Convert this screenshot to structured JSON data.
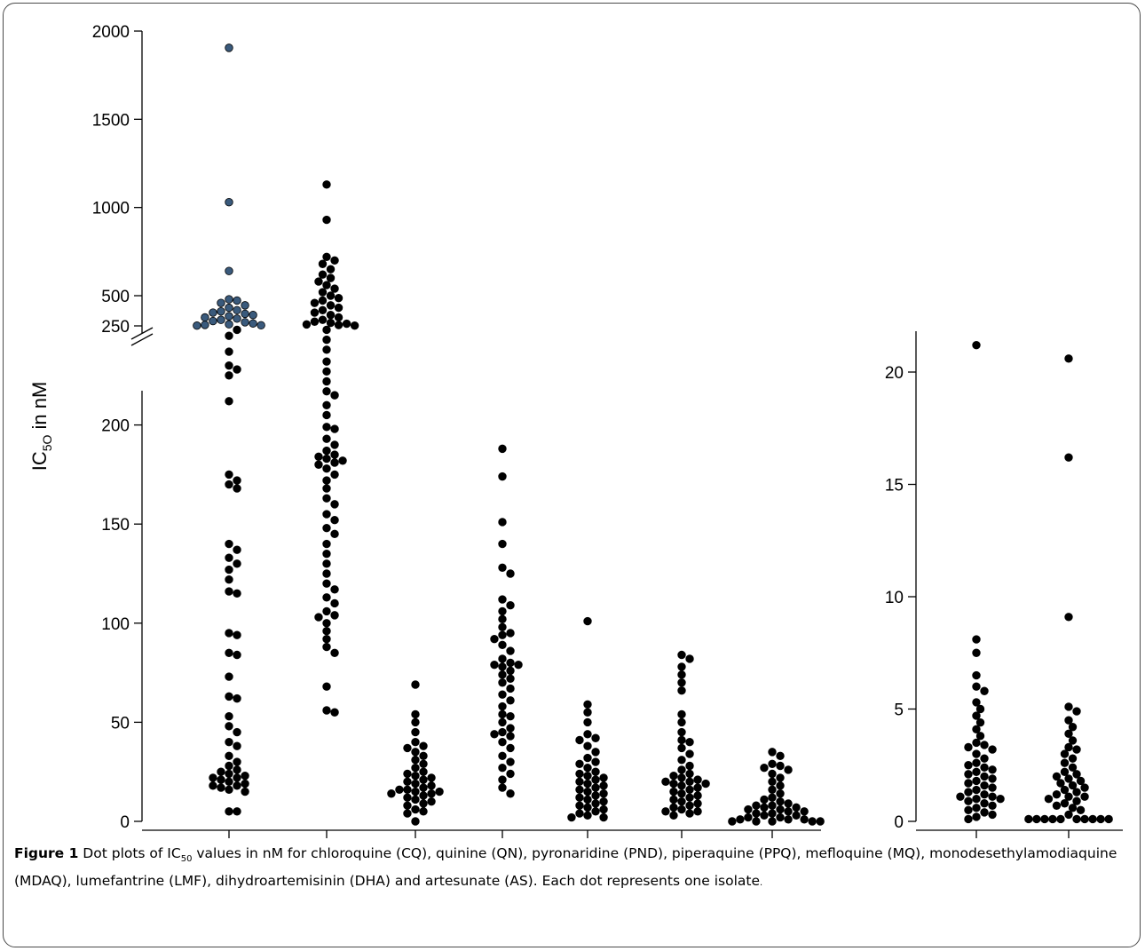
{
  "chart_data": [
    {
      "type": "scatter",
      "style": "dot-plot",
      "ylabel": "IC₅O in nM",
      "ylabel_main": "IC",
      "ylabel_sub": "5O",
      "ylabel_rest": " in nM",
      "y_axis_break": [
        250,
        500
      ],
      "y_ticks_lower": [
        "0",
        "50",
        "100",
        "150",
        "200",
        "250"
      ],
      "y_ticks_upper": [
        "500",
        "1000",
        "1500",
        "2000"
      ],
      "categories": [
        "CQ",
        "QN",
        "PND",
        "PPQ",
        "MQ",
        "MDAQ",
        "LMF"
      ],
      "colors": {
        "dot": "#000000",
        "cq_resistant": "#3a5a7c"
      },
      "series": [
        {
          "category": "CQ",
          "values": [
            1905,
            1030,
            640,
            470,
            460,
            440,
            420,
            400,
            380,
            370,
            360,
            350,
            340,
            330,
            320,
            310,
            300,
            290,
            280,
            270,
            263,
            258,
            255,
            252,
            248,
            245,
            237,
            230,
            228,
            225,
            212,
            175,
            172,
            170,
            168,
            140,
            137,
            133,
            130,
            127,
            122,
            116,
            115,
            95,
            94,
            85,
            84,
            73,
            63,
            62,
            53,
            48,
            45,
            40,
            38,
            33,
            30,
            28,
            26,
            25,
            24,
            23,
            22,
            22,
            21,
            20,
            19,
            18,
            18,
            17,
            16,
            15,
            5,
            5
          ]
        },
        {
          "category": "QN",
          "values": [
            1130,
            930,
            720,
            700,
            680,
            650,
            620,
            600,
            580,
            560,
            540,
            520,
            500,
            480,
            460,
            440,
            420,
            400,
            380,
            360,
            340,
            320,
            300,
            285,
            275,
            268,
            262,
            257,
            252,
            248,
            243,
            238,
            232,
            227,
            222,
            217,
            215,
            210,
            205,
            199,
            198,
            193,
            190,
            187,
            185,
            184,
            183,
            182,
            181,
            180,
            178,
            175,
            172,
            168,
            163,
            160,
            155,
            152,
            148,
            145,
            140,
            135,
            130,
            125,
            120,
            117,
            113,
            110,
            106,
            104,
            103,
            100,
            96,
            92,
            88,
            85,
            68,
            56,
            55
          ]
        },
        {
          "category": "PND",
          "values": [
            69,
            54,
            50,
            45,
            40,
            38,
            37,
            35,
            33,
            31,
            29,
            27,
            25,
            24,
            23,
            22,
            21,
            20,
            19,
            18,
            17,
            16,
            16,
            15,
            15,
            14,
            14,
            13,
            12,
            11,
            10,
            9,
            8,
            6,
            5,
            4,
            0
          ]
        },
        {
          "category": "PPQ",
          "values": [
            188,
            174,
            151,
            140,
            128,
            125,
            112,
            109,
            106,
            102,
            98,
            95,
            94,
            92,
            89,
            86,
            82,
            80,
            79,
            79,
            78,
            76,
            74,
            72,
            70,
            67,
            64,
            61,
            58,
            54,
            53,
            50,
            47,
            45,
            44,
            43,
            40,
            37,
            33,
            30,
            27,
            24,
            21,
            17,
            14
          ]
        },
        {
          "category": "MQ",
          "values": [
            101,
            59,
            55,
            50,
            44,
            42,
            41,
            38,
            35,
            32,
            30,
            29,
            27,
            25,
            24,
            23,
            22,
            21,
            20,
            19,
            18,
            17,
            16,
            15,
            14,
            13,
            12,
            11,
            10,
            9,
            8,
            7,
            6,
            5,
            4,
            3,
            2,
            2
          ]
        },
        {
          "category": "MDAQ",
          "values": [
            84,
            82,
            78,
            74,
            70,
            66,
            54,
            50,
            45,
            41,
            40,
            37,
            34,
            31,
            28,
            26,
            24,
            23,
            22,
            21,
            20,
            20,
            19,
            19,
            18,
            17,
            16,
            15,
            14,
            13,
            12,
            11,
            10,
            9,
            8,
            7,
            6,
            5,
            5,
            4,
            3
          ]
        },
        {
          "category": "LMF",
          "values": [
            35,
            33,
            29,
            28,
            27,
            26,
            24,
            22,
            20,
            18,
            16,
            14,
            12,
            11,
            10,
            9,
            8,
            8,
            7,
            7,
            6,
            6,
            5,
            5,
            4,
            4,
            3,
            3,
            2,
            2,
            1,
            1,
            1,
            0,
            0,
            0,
            0,
            0
          ]
        }
      ]
    },
    {
      "type": "scatter",
      "style": "dot-plot",
      "y_ticks": [
        "0",
        "5",
        "10",
        "15",
        "20"
      ],
      "ylim": [
        0,
        21.5
      ],
      "categories": [
        "DHA",
        "AS"
      ],
      "colors": {
        "dot": "#000000"
      },
      "series": [
        {
          "category": "DHA",
          "values": [
            21.2,
            8.1,
            7.5,
            6.5,
            6.0,
            5.8,
            5.3,
            5.0,
            4.7,
            4.4,
            4.1,
            3.8,
            3.5,
            3.4,
            3.3,
            3.2,
            3.0,
            2.8,
            2.6,
            2.5,
            2.4,
            2.3,
            2.2,
            2.1,
            2.0,
            1.9,
            1.8,
            1.7,
            1.6,
            1.5,
            1.4,
            1.3,
            1.2,
            1.1,
            1.1,
            1.0,
            1.0,
            0.9,
            0.8,
            0.7,
            0.6,
            0.5,
            0.4,
            0.3,
            0.2,
            0.1
          ]
        },
        {
          "category": "AS",
          "values": [
            20.6,
            16.2,
            9.1,
            5.1,
            4.9,
            4.5,
            4.2,
            3.9,
            3.6,
            3.3,
            3.2,
            3.0,
            2.8,
            2.6,
            2.4,
            2.2,
            2.1,
            2.0,
            1.9,
            1.8,
            1.7,
            1.6,
            1.5,
            1.4,
            1.3,
            1.2,
            1.1,
            1.1,
            1.0,
            0.9,
            0.8,
            0.7,
            0.6,
            0.5,
            0.3,
            0.1,
            0.1,
            0.1,
            0.1,
            0.1,
            0.1,
            0.1,
            0.1,
            0.1,
            0.1
          ]
        }
      ]
    }
  ],
  "caption": {
    "figure_label": "Figure 1",
    "text_before_sub": " Dot plots of IC",
    "sub": "50",
    "text_after_sub": " values in nM for chloroquine (CQ), quinine (QN), pyronaridine (PND), piperaquine (PPQ), mefloquine (MQ), monodesethylamodiaquine (MDAQ), lumefantrine (LMF), dihydroartemisinin (DHA) and artesunate (AS). Each dot represents one isolate",
    "trailing": "."
  }
}
